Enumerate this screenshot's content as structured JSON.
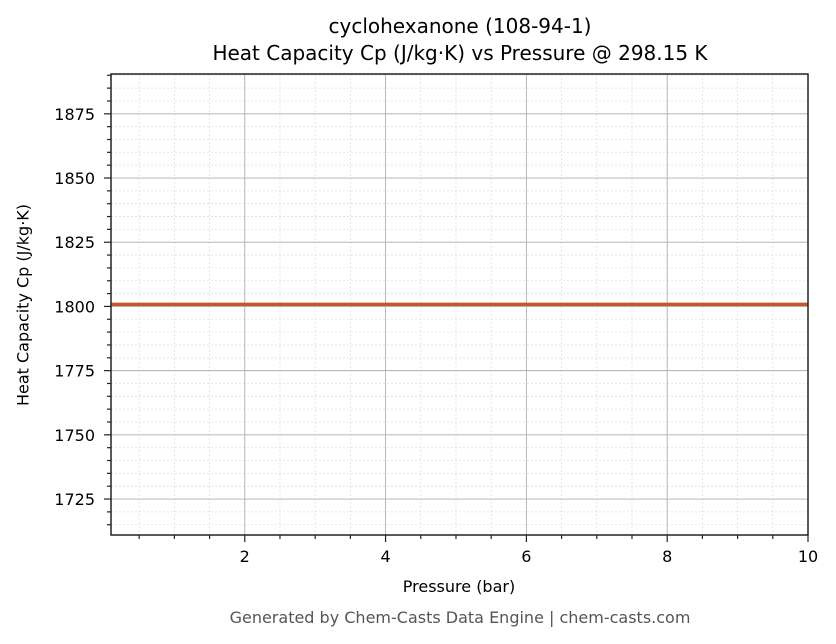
{
  "chart_data": {
    "type": "line",
    "title": "cyclohexanone (108-94-1)",
    "subtitle": "Heat Capacity Cp (J/kg·K) vs Pressure @ 298.15 K",
    "xlabel": "Pressure (bar)",
    "ylabel": "Heat Capacity Cp (J/kg·K)",
    "xlim": [
      0.1,
      10
    ],
    "ylim": [
      1711,
      1890.5
    ],
    "xticks": [
      2,
      4,
      6,
      8,
      10
    ],
    "yticks": [
      1725,
      1750,
      1775,
      1800,
      1825,
      1850,
      1875
    ],
    "grid": true,
    "minor_grid": true,
    "legend": null,
    "series": [
      {
        "name": "Cp",
        "color": "#c8562a",
        "x": [
          0.1,
          1,
          2,
          3,
          4,
          5,
          6,
          7,
          8,
          9,
          10
        ],
        "y": [
          1800.8,
          1800.8,
          1800.8,
          1800.8,
          1800.8,
          1800.8,
          1800.8,
          1800.8,
          1800.8,
          1800.8,
          1800.8
        ]
      }
    ]
  },
  "footer": "Generated by Chem-Casts Data Engine | chem-casts.com"
}
